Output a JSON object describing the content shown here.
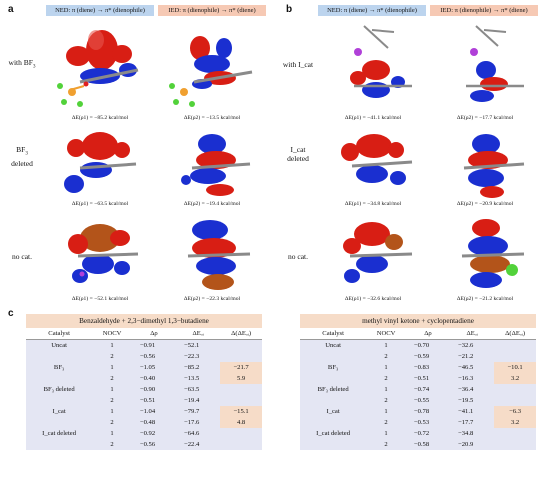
{
  "panel_labels": {
    "a": "a",
    "b": "b",
    "c": "c"
  },
  "headers": {
    "ned": "NED: π (diene) → π* (dienophile)",
    "ied": "IED: π (dienophile) → π* (diene)"
  },
  "panel_a": {
    "rows": [
      {
        "label_main": "with BF",
        "label_sub": "3",
        "label_rest": "",
        "e1": "ΔE(ρ1) = −85.2 kcal/mol",
        "e2": "ΔE(ρ2) = −13.5 kcal/mol"
      },
      {
        "label_main": "BF",
        "label_sub": "3",
        "label_rest": "deleted",
        "e1": "ΔE(ρ1) = −63.5 kcal/mol",
        "e2": "ΔE(ρ2) = −19.4 kcal/mol"
      },
      {
        "label_main": "no cat.",
        "label_sub": "",
        "label_rest": "",
        "e1": "ΔE(ρ1) = −52.1 kcal/mol",
        "e2": "ΔE(ρ2) = −22.3 kcal/mol"
      }
    ]
  },
  "panel_b": {
    "rows": [
      {
        "label_main": "with I_cat",
        "label_rest": "",
        "e1": "ΔE(ρ1) = −41.1 kcal/mol",
        "e2": "ΔE(ρ2) = −17.7 kcal/mol"
      },
      {
        "label_main": "I_cat",
        "label_rest": "deleted",
        "e1": "ΔE(ρ1) = −34.8 kcal/mol",
        "e2": "ΔE(ρ2) = −20.9 kcal/mol"
      },
      {
        "label_main": "no cat.",
        "label_rest": "",
        "e1": "ΔE(ρ1) = −32.6 kcal/mol",
        "e2": "ΔE(ρ2) = −21.2 kcal/mol"
      }
    ]
  },
  "table_left": {
    "title": "Benzaldehyde + 2,3−dimethyl 1,3−butadiene",
    "columns": [
      "Catalyst",
      "NOCV",
      "Δρ",
      "ΔEₒᵢ",
      "Δ(ΔEₒᵢ)"
    ],
    "rows": [
      [
        "Uncat",
        "1",
        "−0.91",
        "−52.1",
        ""
      ],
      [
        "",
        "2",
        "−0.56",
        "−22.3",
        ""
      ],
      [
        "BF₃",
        "1",
        "−1.05",
        "−85.2",
        "−21.7"
      ],
      [
        "",
        "2",
        "−0.40",
        "−13.5",
        "5.9"
      ],
      [
        "BF₃ deleted",
        "1",
        "−0.90",
        "−63.5",
        ""
      ],
      [
        "",
        "2",
        "−0.51",
        "−19.4",
        ""
      ],
      [
        "I_cat",
        "1",
        "−1.04",
        "−79.7",
        "−15.1"
      ],
      [
        "",
        "2",
        "−0.48",
        "−17.6",
        "4.8"
      ],
      [
        "I_cat deleted",
        "1",
        "−0.92",
        "−64.6",
        ""
      ],
      [
        "",
        "2",
        "−0.56",
        "−22.4",
        ""
      ]
    ]
  },
  "table_right": {
    "title": "methyl vinyl ketone + cyclopentadiene",
    "columns": [
      "Catalyst",
      "NOCV",
      "Δρ",
      "ΔEₒᵢ",
      "Δ(ΔEₒᵢ)"
    ],
    "rows": [
      [
        "Uncat",
        "1",
        "−0.70",
        "−32.6",
        ""
      ],
      [
        "",
        "2",
        "−0.59",
        "−21.2",
        ""
      ],
      [
        "BF₃",
        "1",
        "−0.83",
        "−46.5",
        "−10.1"
      ],
      [
        "",
        "2",
        "−0.51",
        "−16.3",
        "3.2"
      ],
      [
        "BF₃ deleted",
        "1",
        "−0.74",
        "−36.4",
        ""
      ],
      [
        "",
        "2",
        "−0.55",
        "−19.5",
        ""
      ],
      [
        "I_cat",
        "1",
        "−0.78",
        "−41.1",
        "−6.3"
      ],
      [
        "",
        "2",
        "−0.53",
        "−17.7",
        "3.2"
      ],
      [
        "I_cat deleted",
        "1",
        "−0.72",
        "−34.8",
        ""
      ],
      [
        "",
        "2",
        "−0.58",
        "−20.9",
        ""
      ]
    ]
  },
  "colors": {
    "lobe_red": "#d81e14",
    "lobe_blue": "#1a2fd0",
    "lobe_orange": "#b3541a",
    "bond_grey": "#8a8a8a",
    "atom_green": "#52d23a",
    "atom_orange": "#f0a030",
    "atom_purple": "#b040d8",
    "highlight": "#f6dcc8",
    "row_bg": "#e4e6f3"
  }
}
